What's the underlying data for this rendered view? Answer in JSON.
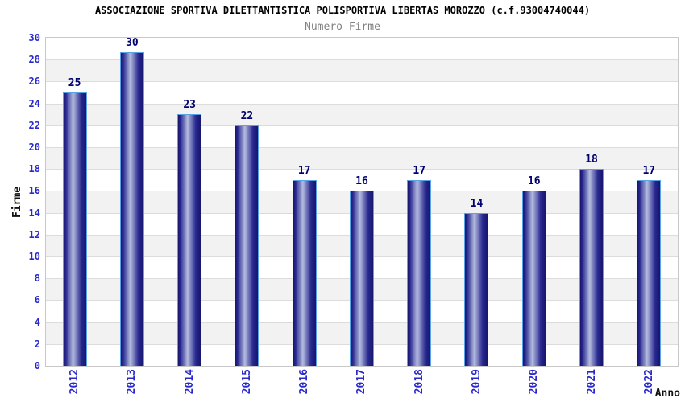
{
  "header": {
    "title": "ASSOCIAZIONE SPORTIVA DILETTANTISTICA POLISPORTIVA LIBERTAS MOROZZO (c.f.93004740044)",
    "subtitle": "Numero Firme"
  },
  "chart_data": {
    "type": "bar",
    "title": "ASSOCIAZIONE SPORTIVA DILETTANTISTICA POLISPORTIVA LIBERTAS MOROZZO (c.f.93004740044)",
    "subtitle": "Numero Firme",
    "xlabel": "Anno",
    "ylabel": "Firme",
    "categories": [
      "2012",
      "2013",
      "2014",
      "2015",
      "2016",
      "2017",
      "2018",
      "2019",
      "2020",
      "2021",
      "2022"
    ],
    "values": [
      25,
      30,
      23,
      22,
      17,
      16,
      17,
      14,
      16,
      18,
      17
    ],
    "ylim": [
      0,
      30
    ],
    "ytick_step": 2,
    "yticks": [
      0,
      2,
      4,
      6,
      8,
      10,
      12,
      14,
      16,
      18,
      20,
      22,
      24,
      26,
      28,
      30
    ],
    "grid": "horizontal gridlines every 2 units with alternating white/gray bands",
    "legend": "none",
    "colors": {
      "title": "#000000",
      "subtitle": "#808080",
      "tick_label": "#2929cc",
      "value_label": "#00006e",
      "band_alt": "#f2f2f2",
      "gridline": "#dcdcdc",
      "plot_border": "#c8c8c8",
      "bar_edge": "#16166e",
      "bar_mid": "#28288f",
      "bar_highlight": "#b4bcdf",
      "bar_outline": "#5aa2e6",
      "background": "#ffffff"
    }
  }
}
